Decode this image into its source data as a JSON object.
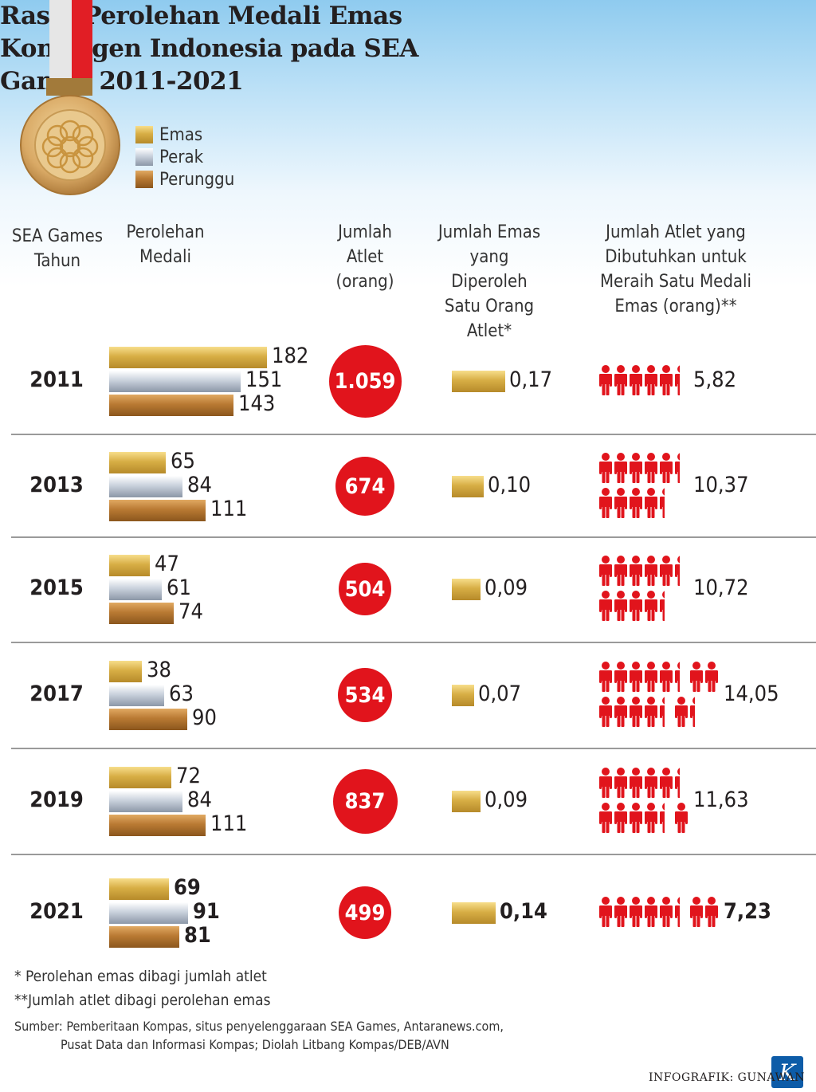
{
  "title": "Rasio Perolehan Medali Emas Kontingen Indonesia pada SEA Games 2011-2021",
  "legend": [
    {
      "label": "Emas",
      "color": "#d7ae45"
    },
    {
      "label": "Perak",
      "color": "#c9d1dc"
    },
    {
      "label": "Perunggu",
      "color": "#b97a33"
    }
  ],
  "columns": {
    "year": "SEA Games Tahun",
    "medals": "Perolehan Medali",
    "athletes": "Jumlah Atlet (orang)",
    "gold_per_athlete": "Jumlah Emas yang Diperoleh Satu Orang Atlet*",
    "athletes_per_gold": "Jumlah Atlet yang Dibutuhkan untuk Meraih Satu Medali Emas (orang)**"
  },
  "chart_data": {
    "type": "bar",
    "categories": [
      "2011",
      "2013",
      "2015",
      "2017",
      "2019",
      "2021"
    ],
    "series": [
      {
        "name": "Emas",
        "values": [
          182,
          65,
          47,
          38,
          72,
          69
        ]
      },
      {
        "name": "Perak",
        "values": [
          151,
          84,
          61,
          63,
          84,
          91
        ]
      },
      {
        "name": "Perunggu",
        "values": [
          143,
          111,
          74,
          90,
          111,
          81
        ]
      }
    ],
    "athletes": [
      1059,
      674,
      504,
      534,
      837,
      499
    ],
    "athletes_label": [
      "1.059",
      "674",
      "504",
      "534",
      "837",
      "499"
    ],
    "gold_per_athlete": [
      0.17,
      0.1,
      0.09,
      0.07,
      0.09,
      0.14
    ],
    "gold_per_athlete_label": [
      "0,17",
      "0,10",
      "0,09",
      "0,07",
      "0,09",
      "0,14"
    ],
    "athletes_per_gold": [
      5.82,
      10.37,
      10.72,
      14.05,
      11.63,
      7.23
    ],
    "athletes_per_gold_label": [
      "5,82",
      "10,37",
      "10,72",
      "14,05",
      "11,63",
      "7,23"
    ]
  },
  "notes": [
    "*  Perolehan emas dibagi jumlah atlet",
    "**Jumlah atlet dibagi perolehan emas"
  ],
  "source_line1": "Sumber: Pemberitaan Kompas, situs penyelenggaraan SEA Games, Antaranews.com,",
  "source_line2": "Pusat Data dan Informasi Kompas; Diolah Litbang Kompas/DEB/AVN",
  "credit": "INFOGRAFIK: GUNAWAN",
  "logo_letter": "K",
  "colors": {
    "accent_red": "#e1141c",
    "gold": "#d7ae45",
    "silver": "#c9d1dc",
    "bronze": "#b97a33"
  }
}
